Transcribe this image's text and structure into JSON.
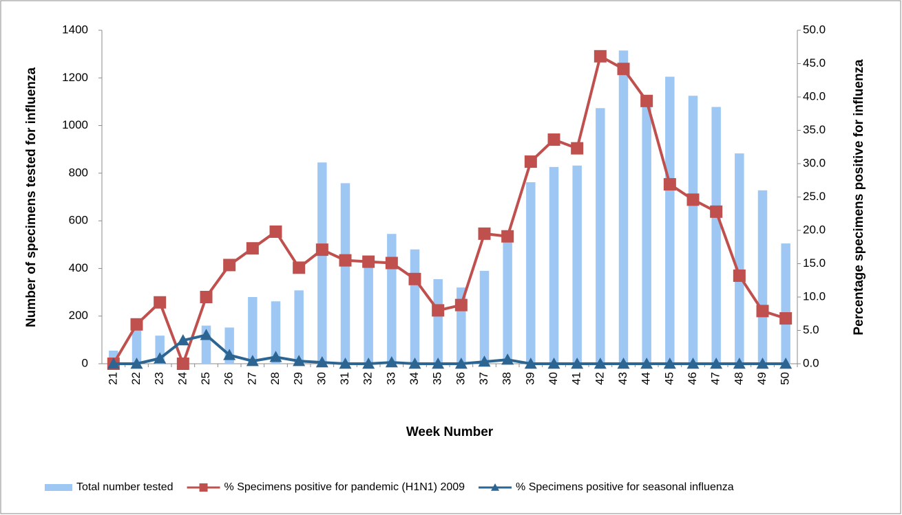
{
  "chart_data": {
    "type": "bar",
    "x_label": "Week Number",
    "y_label": "Number of specimens tested for influenza",
    "y2_label": "Percentage specimens  positive  for influenza",
    "categories": [
      "21",
      "22",
      "23",
      "24",
      "25",
      "26",
      "27",
      "28",
      "29",
      "30",
      "31",
      "32",
      "33",
      "34",
      "35",
      "36",
      "37",
      "38",
      "39",
      "40",
      "41",
      "42",
      "43",
      "44",
      "45",
      "46",
      "47",
      "48",
      "49",
      "50"
    ],
    "series": [
      {
        "name": "Total number tested",
        "type": "bar",
        "color": "#9ec8f3",
        "values": [
          55,
          145,
          118,
          0,
          160,
          152,
          280,
          262,
          308,
          845,
          758,
          420,
          545,
          480,
          355,
          320,
          390,
          520,
          762,
          826,
          832,
          1073,
          1315,
          1080,
          1205,
          1125,
          1078,
          883,
          728,
          505
        ]
      },
      {
        "name": "% Specimens positive for pandemic (H1N1) 2009",
        "type": "line",
        "axis": "y2",
        "marker": "square",
        "color": "#c0504d",
        "values": [
          0,
          5.9,
          9.2,
          0,
          10.0,
          14.8,
          17.3,
          19.8,
          14.4,
          17.1,
          15.5,
          15.3,
          15.1,
          12.7,
          8.0,
          8.8,
          19.5,
          19.1,
          30.3,
          33.6,
          32.3,
          46.1,
          44.2,
          39.4,
          26.9,
          24.6,
          22.8,
          13.2,
          7.9,
          6.8
        ]
      },
      {
        "name": "% Specimens positive for seasonal influenza",
        "type": "line",
        "axis": "y2",
        "marker": "triangle",
        "color": "#2d6592",
        "values": [
          0,
          0,
          0.8,
          3.5,
          4.3,
          1.3,
          0.4,
          1.0,
          0.4,
          0.2,
          0,
          0,
          0.2,
          0,
          0,
          0,
          0.3,
          0.6,
          0,
          0,
          0,
          0,
          0,
          0,
          0,
          0,
          0,
          0,
          0,
          0
        ]
      }
    ],
    "ylim": [
      0,
      1400
    ],
    "yticks": [
      0,
      200,
      400,
      600,
      800,
      1000,
      1200,
      1400
    ],
    "y2lim": [
      0,
      50
    ],
    "y2ticks": [
      {
        "value": 0,
        "label": "0.0"
      },
      {
        "value": 5,
        "label": "5.0"
      },
      {
        "value": 10,
        "label": "10.0"
      },
      {
        "value": 15,
        "label": "15.0"
      },
      {
        "value": 20,
        "label": "20.0"
      },
      {
        "value": 25,
        "label": "25.0"
      },
      {
        "value": 30,
        "label": "30.0"
      },
      {
        "value": 35,
        "label": "35.0"
      },
      {
        "value": 40,
        "label": "40.0"
      },
      {
        "value": 45,
        "label": "45.0"
      },
      {
        "value": 50,
        "label": "50.0"
      }
    ],
    "grid": false,
    "legend": "bottom"
  }
}
